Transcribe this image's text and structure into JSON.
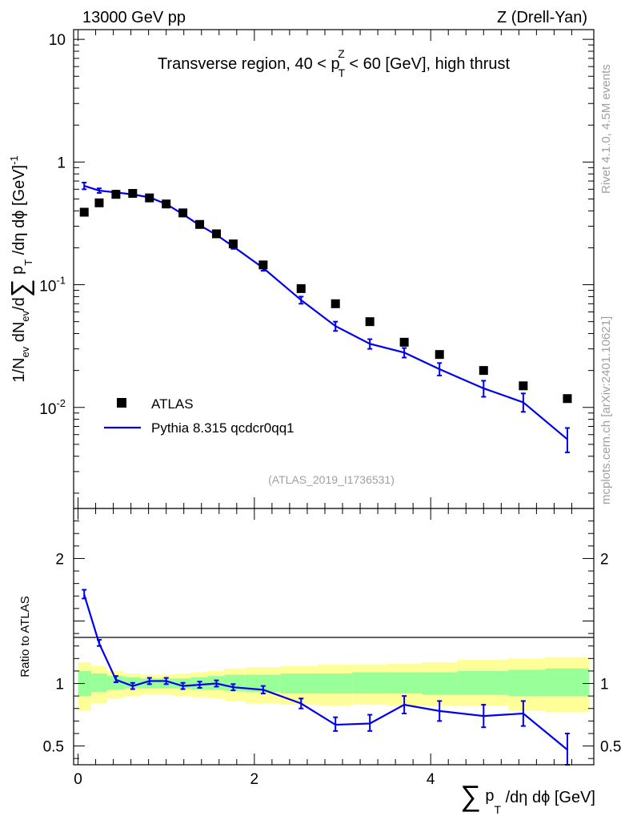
{
  "header": {
    "left": "13000 GeV pp",
    "right": "Z (Drell-Yan)"
  },
  "side_labels": {
    "rivet": "Rivet 4.1.0,  4.5M events",
    "mcplots": "mcplots.cern.ch [arXiv:2401.10621]"
  },
  "chart_data": [
    {
      "type": "scatter",
      "panel": "main",
      "title": "Transverse region, 40 < p_T^Z < 60 [GeV], high thrust",
      "title_parts": {
        "pre": "Transverse region, 40 < p",
        "sup": "Z",
        "sub": "T",
        "post": " < 60 [GeV], high thrust"
      },
      "ylabel_parts": [
        "1/N",
        "ev",
        " dN",
        "ev",
        "/d",
        "∑",
        " p",
        "T",
        " /dη dϕ  [GeV]",
        "-1"
      ],
      "yscale": "log",
      "ylim": [
        0.0015,
        12
      ],
      "xlim": [
        -0.05,
        5.85
      ],
      "y_ticks": [
        {
          "value": 10,
          "label": "10"
        },
        {
          "value": 1,
          "label": "1"
        },
        {
          "value": 0.1,
          "base": "10",
          "exp": "-1"
        },
        {
          "value": 0.01,
          "base": "10",
          "exp": "-2"
        }
      ],
      "watermark": "(ATLAS_2019_I1736531)",
      "legend": {
        "position": "bottom-left",
        "entries": [
          {
            "label": "ATLAS",
            "marker": "square"
          },
          {
            "label": "Pythia 8.315 qcdcr0qq1",
            "marker": "line"
          }
        ]
      },
      "series": [
        {
          "name": "ATLAS",
          "color": "#000000",
          "x": [
            0.07,
            0.24,
            0.43,
            0.62,
            0.81,
            1.0,
            1.19,
            1.38,
            1.57,
            1.76,
            2.1,
            2.53,
            2.92,
            3.31,
            3.7,
            4.1,
            4.6,
            5.05,
            5.55
          ],
          "y": [
            0.39,
            0.465,
            0.545,
            0.555,
            0.51,
            0.455,
            0.385,
            0.31,
            0.26,
            0.215,
            0.145,
            0.093,
            0.07,
            0.05,
            0.034,
            0.027,
            0.02,
            0.015,
            0.0118
          ]
        },
        {
          "name": "Pythia 8.315 qcdcr0qq1",
          "color": "#0000ee",
          "x": [
            0.07,
            0.24,
            0.43,
            0.62,
            0.81,
            1.0,
            1.19,
            1.38,
            1.57,
            1.76,
            2.1,
            2.53,
            2.92,
            3.31,
            3.7,
            4.1,
            4.6,
            5.05,
            5.55
          ],
          "y": [
            0.64,
            0.585,
            0.565,
            0.545,
            0.515,
            0.455,
            0.375,
            0.305,
            0.255,
            0.205,
            0.137,
            0.075,
            0.046,
            0.033,
            0.028,
            0.0205,
            0.0143,
            0.011,
            0.0055
          ],
          "err_low": [
            0.6,
            0.56,
            0.545,
            0.528,
            0.495,
            0.44,
            0.36,
            0.293,
            0.245,
            0.196,
            0.13,
            0.07,
            0.042,
            0.03,
            0.0255,
            0.0182,
            0.0122,
            0.0092,
            0.0043
          ],
          "err_high": [
            0.68,
            0.61,
            0.585,
            0.562,
            0.535,
            0.47,
            0.39,
            0.317,
            0.265,
            0.214,
            0.144,
            0.08,
            0.05,
            0.036,
            0.0305,
            0.023,
            0.0165,
            0.013,
            0.0068
          ]
        }
      ]
    },
    {
      "type": "line",
      "panel": "ratio",
      "ylabel": "Ratio to ATLAS",
      "xlabel_parts": [
        "∑",
        " p",
        "T",
        " /dη dϕ [GeV]"
      ],
      "ylim": [
        0.35,
        2.4
      ],
      "xlim": [
        -0.05,
        5.85
      ],
      "y_ticks": [
        {
          "value": 0.5,
          "label": "0.5"
        },
        {
          "value": 1,
          "label": "1"
        },
        {
          "value": 2,
          "label": "2"
        }
      ],
      "x_ticks": [
        {
          "value": 0,
          "label": "0"
        },
        {
          "value": 2,
          "label": "2"
        },
        {
          "value": 4,
          "label": "4"
        }
      ],
      "bands": {
        "edges": [
          0.0,
          0.15,
          0.33,
          0.52,
          0.71,
          0.9,
          1.09,
          1.28,
          1.47,
          1.66,
          1.9,
          2.3,
          2.72,
          3.11,
          3.5,
          3.9,
          4.3,
          4.88,
          5.3,
          5.8
        ],
        "yellow_low": [
          0.78,
          0.84,
          0.88,
          0.9,
          0.91,
          0.91,
          0.9,
          0.89,
          0.88,
          0.86,
          0.84,
          0.83,
          0.82,
          0.83,
          0.82,
          0.82,
          0.82,
          0.78,
          0.77
        ],
        "yellow_high": [
          1.17,
          1.14,
          1.1,
          1.08,
          1.07,
          1.07,
          1.08,
          1.09,
          1.1,
          1.12,
          1.13,
          1.14,
          1.15,
          1.15,
          1.16,
          1.17,
          1.19,
          1.2,
          1.21
        ],
        "green_low": [
          0.9,
          0.93,
          0.95,
          0.96,
          0.96,
          0.96,
          0.96,
          0.95,
          0.95,
          0.94,
          0.93,
          0.92,
          0.92,
          0.92,
          0.92,
          0.91,
          0.91,
          0.9,
          0.9
        ],
        "green_high": [
          1.1,
          1.08,
          1.06,
          1.05,
          1.04,
          1.04,
          1.04,
          1.05,
          1.06,
          1.07,
          1.07,
          1.08,
          1.08,
          1.09,
          1.09,
          1.09,
          1.1,
          1.11,
          1.12
        ],
        "yellow_color": "#ffff99",
        "green_color": "#99ff99"
      },
      "series": [
        {
          "name": "Pythia 8.315 qcdcr0qq1 / ATLAS",
          "color": "#0000ee",
          "x": [
            0.07,
            0.24,
            0.43,
            0.62,
            0.81,
            1.0,
            1.19,
            1.38,
            1.57,
            1.76,
            2.1,
            2.53,
            2.92,
            3.31,
            3.7,
            4.1,
            4.6,
            5.05,
            5.55
          ],
          "y": [
            1.71,
            1.32,
            1.03,
            0.98,
            1.02,
            1.02,
            0.98,
            0.99,
            1.0,
            0.97,
            0.95,
            0.84,
            0.67,
            0.68,
            0.83,
            0.78,
            0.74,
            0.76,
            0.47
          ],
          "err_low": [
            1.68,
            1.3,
            1.01,
            0.955,
            0.995,
            0.995,
            0.955,
            0.965,
            0.975,
            0.945,
            0.92,
            0.8,
            0.62,
            0.62,
            0.76,
            0.7,
            0.65,
            0.66,
            0.35
          ],
          "err_high": [
            1.75,
            1.35,
            1.06,
            1.005,
            1.045,
            1.045,
            1.005,
            1.015,
            1.025,
            0.995,
            0.98,
            0.88,
            0.73,
            0.75,
            0.9,
            0.86,
            0.83,
            0.86,
            0.6
          ]
        }
      ]
    }
  ]
}
